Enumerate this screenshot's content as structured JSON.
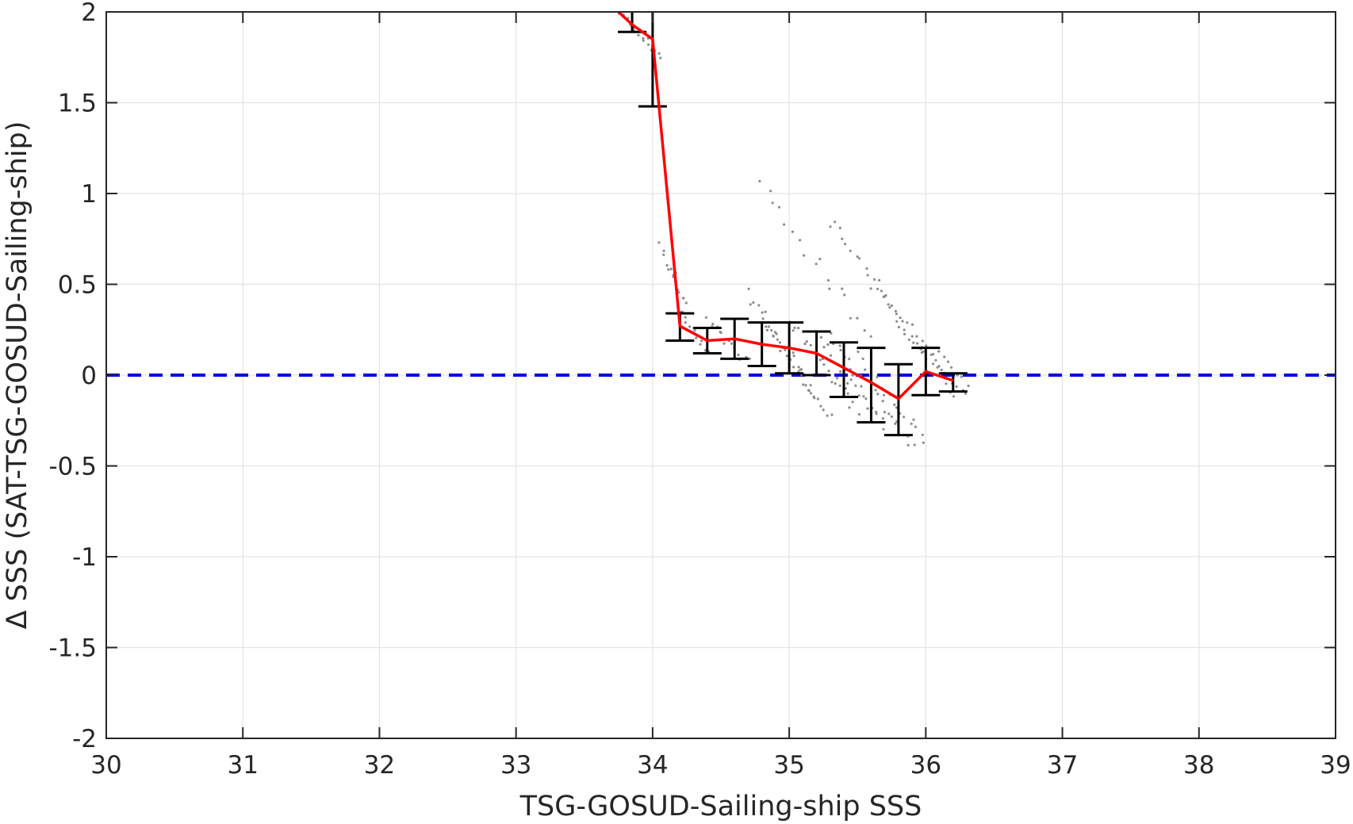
{
  "chart_data": {
    "type": "scatter",
    "title": "",
    "xlabel": "TSG-GOSUD-Sailing-ship SSS",
    "ylabel": "Δ SSS (SAT-TSG-GOSUD-Sailing-ship)",
    "xlim": [
      30,
      39
    ],
    "ylim": [
      -2,
      2
    ],
    "xticks": [
      30,
      31,
      32,
      33,
      34,
      35,
      36,
      37,
      38,
      39
    ],
    "yticks": [
      -2,
      -1.5,
      -1,
      -0.5,
      0,
      0.5,
      1,
      1.5,
      2
    ],
    "xtick_labels": [
      "30",
      "31",
      "32",
      "33",
      "34",
      "35",
      "36",
      "37",
      "38",
      "39"
    ],
    "ytick_labels": [
      "-2",
      "-1.5",
      "-1",
      "-0.5",
      "0",
      "0.5",
      "1",
      "1.5",
      "2"
    ],
    "grid": true,
    "legend": "none",
    "colors": {
      "scatter": "#8c8c8c",
      "mean_line": "#ff0000",
      "error_bars": "#000000",
      "zero_line": "#0000e6",
      "grid": "#e3e3e3",
      "axes": "#262626"
    },
    "scatter_streaks": [
      {
        "x": [
          33.75,
          34.05
        ],
        "y": [
          2.0,
          1.76
        ],
        "n": 20,
        "jitter": 0.05
      },
      {
        "x": [
          34.05,
          34.25
        ],
        "y": [
          0.7,
          0.42
        ],
        "n": 14,
        "jitter": 0.08
      },
      {
        "x": [
          34.2,
          34.4
        ],
        "y": [
          0.35,
          0.12
        ],
        "n": 12,
        "jitter": 0.05
      },
      {
        "x": [
          34.4,
          34.7
        ],
        "y": [
          0.3,
          0.06
        ],
        "n": 14,
        "jitter": 0.06
      },
      {
        "x": [
          34.7,
          35.2
        ],
        "y": [
          0.45,
          -0.1
        ],
        "n": 22,
        "jitter": 0.07
      },
      {
        "x": [
          34.8,
          35.3
        ],
        "y": [
          0.3,
          -0.24
        ],
        "n": 22,
        "jitter": 0.05
      },
      {
        "x": [
          35.0,
          35.5
        ],
        "y": [
          0.3,
          -0.2
        ],
        "n": 22,
        "jitter": 0.07
      },
      {
        "x": [
          35.2,
          35.7
        ],
        "y": [
          0.22,
          -0.28
        ],
        "n": 22,
        "jitter": 0.06
      },
      {
        "x": [
          35.3,
          35.9
        ],
        "y": [
          0.2,
          -0.38
        ],
        "n": 24,
        "jitter": 0.07
      },
      {
        "x": [
          35.5,
          36.0
        ],
        "y": [
          0.1,
          -0.35
        ],
        "n": 18,
        "jitter": 0.06
      },
      {
        "x": [
          34.8,
          35.6
        ],
        "y": [
          1.05,
          0.2
        ],
        "n": 18,
        "jitter": 0.09
      },
      {
        "x": [
          35.3,
          36.2
        ],
        "y": [
          0.85,
          -0.1
        ],
        "n": 30,
        "jitter": 0.07
      },
      {
        "x": [
          35.6,
          36.3
        ],
        "y": [
          0.5,
          -0.05
        ],
        "n": 22,
        "jitter": 0.05
      },
      {
        "x": [
          35.8,
          36.3
        ],
        "y": [
          0.28,
          -0.12
        ],
        "n": 14,
        "jitter": 0.05
      }
    ],
    "mean_line": {
      "x": [
        33.75,
        33.85,
        34.0,
        34.2,
        34.4,
        34.6,
        34.8,
        35.0,
        35.2,
        35.4,
        35.6,
        35.8,
        36.0,
        36.2
      ],
      "y": [
        2.0,
        1.93,
        1.85,
        0.27,
        0.19,
        0.2,
        0.17,
        0.15,
        0.12,
        0.04,
        -0.04,
        -0.13,
        0.02,
        -0.03
      ]
    },
    "error_bars": [
      {
        "x": 33.85,
        "low": 1.89,
        "high": 2.0
      },
      {
        "x": 34.0,
        "low": 1.48,
        "high": 2.0
      },
      {
        "x": 34.2,
        "low": 0.19,
        "high": 0.34
      },
      {
        "x": 34.4,
        "low": 0.12,
        "high": 0.26
      },
      {
        "x": 34.6,
        "low": 0.09,
        "high": 0.31
      },
      {
        "x": 34.8,
        "low": 0.05,
        "high": 0.29
      },
      {
        "x": 35.0,
        "low": 0.01,
        "high": 0.29
      },
      {
        "x": 35.2,
        "low": 0.0,
        "high": 0.24
      },
      {
        "x": 35.4,
        "low": -0.12,
        "high": 0.18
      },
      {
        "x": 35.6,
        "low": -0.26,
        "high": 0.15
      },
      {
        "x": 35.8,
        "low": -0.33,
        "high": 0.06
      },
      {
        "x": 36.0,
        "low": -0.11,
        "high": 0.15
      },
      {
        "x": 36.2,
        "low": -0.09,
        "high": 0.01
      }
    ],
    "reference_line": {
      "y": 0,
      "style": "dashed"
    }
  }
}
